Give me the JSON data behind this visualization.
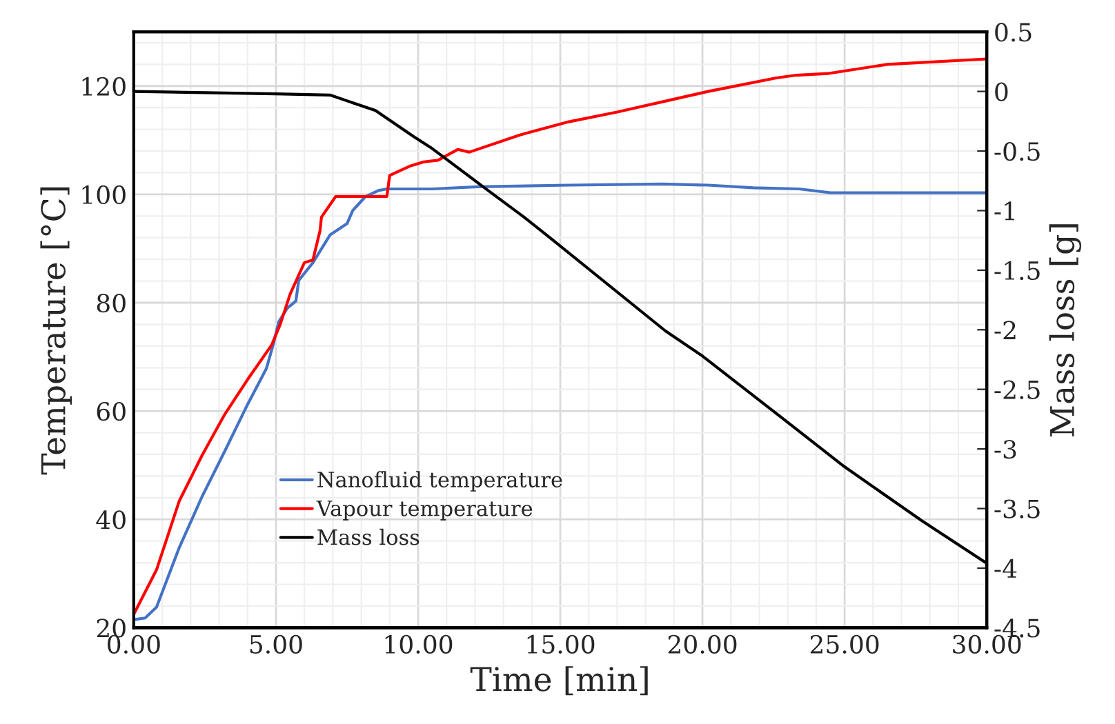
{
  "chart_data": {
    "type": "line",
    "xlabel": "Time [min]",
    "ylabel": "Temperature [°C]",
    "y2label": "Mass loss [g]",
    "xlim": [
      0,
      30
    ],
    "xticks": [
      {
        "value": 0,
        "label": "0.00"
      },
      {
        "value": 5,
        "label": "5.00"
      },
      {
        "value": 10,
        "label": "10.00"
      },
      {
        "value": 15,
        "label": "15.00"
      },
      {
        "value": 20,
        "label": "20.00"
      },
      {
        "value": 25,
        "label": "25.00"
      },
      {
        "value": 30,
        "label": "30.00"
      }
    ],
    "ylim": [
      20,
      130
    ],
    "yticks": [
      20,
      40,
      60,
      80,
      100,
      120
    ],
    "y2lim": [
      -4.5,
      0.5
    ],
    "y2ticks": [
      0.5,
      0,
      -0.5,
      -1,
      -1.5,
      -2,
      -2.5,
      -3,
      -3.5,
      -4,
      -4.5
    ],
    "grid": true,
    "legend": "lower left",
    "line_style": "solid",
    "series": [
      {
        "name": "Nanofluid temperature",
        "color": "#4472c4",
        "x": [
          0,
          0.4,
          0.8,
          1.6,
          2.4,
          3.2,
          4.0,
          4.66,
          4.9,
          5.1,
          5.4,
          5.7,
          5.8,
          6.3,
          6.9,
          7.5,
          7.7,
          7.8,
          8.15,
          8.6,
          8.9,
          10.5,
          12.1,
          15.3,
          18.6,
          20.2,
          21.8,
          23.4,
          24.5,
          30
        ],
        "values": [
          21.5,
          21.8,
          23.8,
          34.8,
          44.2,
          52.6,
          61.2,
          67.8,
          72.2,
          76.5,
          79,
          80.3,
          84.1,
          87.4,
          92.5,
          94.6,
          97,
          97.6,
          99.6,
          100.7,
          101,
          101,
          101.4,
          101.7,
          101.9,
          101.7,
          101.2,
          101,
          100.3,
          100.3
        ]
      },
      {
        "name": "Vapour temperature",
        "color": "#ff0000",
        "x": [
          0,
          0.8,
          1.6,
          2.4,
          3.2,
          4.0,
          4.85,
          5.15,
          5.5,
          6.0,
          6.3,
          6.55,
          6.6,
          7.1,
          8.9,
          9.0,
          9.7,
          10.2,
          10.7,
          11.4,
          11.8,
          13.6,
          15.3,
          17.0,
          20.2,
          22.6,
          23.3,
          24.4,
          26.5,
          30
        ],
        "values": [
          22.5,
          30.7,
          43.4,
          51.8,
          59.4,
          65.8,
          72.2,
          76,
          81.6,
          87.4,
          87.9,
          93.3,
          95.8,
          99.6,
          99.6,
          103.5,
          105.2,
          106,
          106.3,
          108.3,
          107.8,
          111,
          113.4,
          115.2,
          119,
          121.5,
          122,
          122.3,
          124,
          125
        ]
      },
      {
        "name": "Mass loss",
        "color": "#000000",
        "axis": "y2",
        "x": [
          0,
          5,
          6.9,
          8.5,
          9.85,
          10.5,
          12.4,
          13.7,
          14.7,
          18.7,
          20.0,
          22.8,
          25.0,
          27.7,
          30
        ],
        "values": [
          0,
          -0.02,
          -0.03,
          -0.16,
          -0.38,
          -0.48,
          -0.82,
          -1.05,
          -1.24,
          -2.01,
          -2.22,
          -2.74,
          -3.15,
          -3.6,
          -3.96
        ]
      }
    ]
  }
}
